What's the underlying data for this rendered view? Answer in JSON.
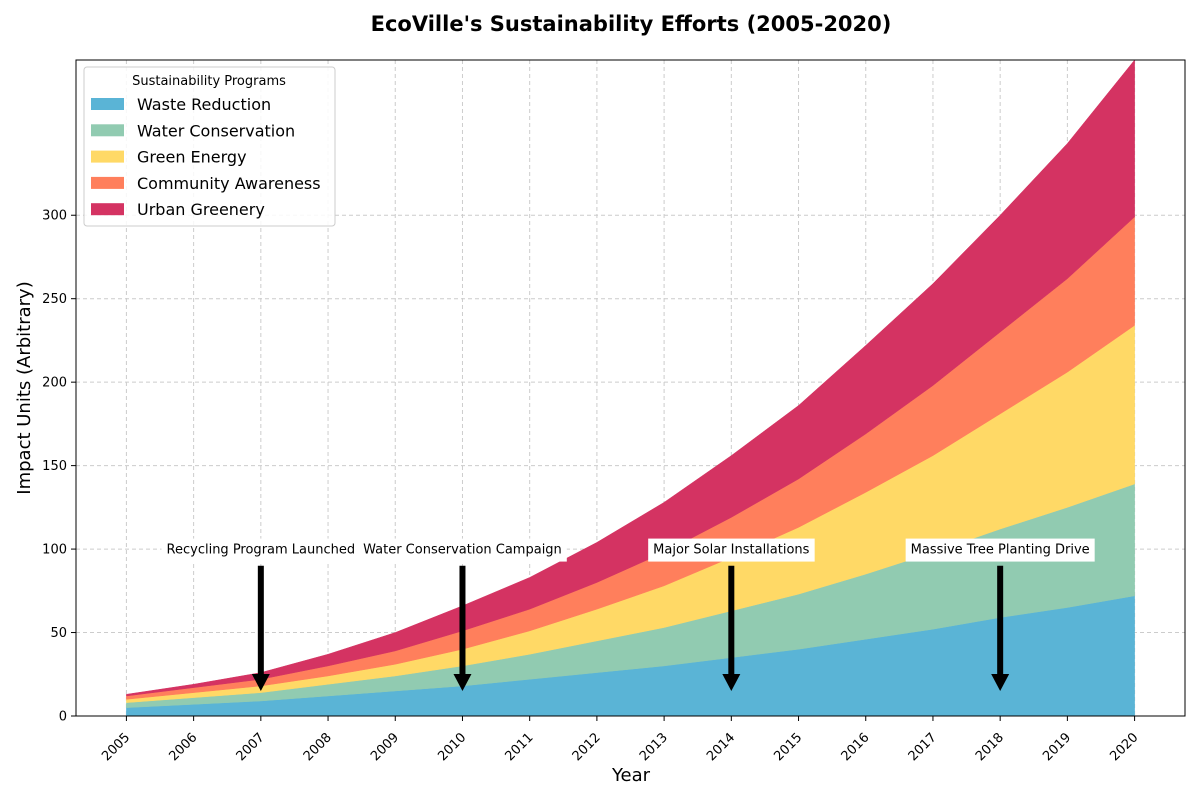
{
  "chart_data": {
    "type": "area",
    "stacked": true,
    "title": "EcoVille's Sustainability Efforts (2005-2020)",
    "xlabel": "Year",
    "ylabel": "Impact Units (Arbitrary)",
    "x": [
      2005,
      2006,
      2007,
      2008,
      2009,
      2010,
      2011,
      2012,
      2013,
      2014,
      2015,
      2016,
      2017,
      2018,
      2019,
      2020
    ],
    "ylim": [
      0,
      393
    ],
    "yticks": [
      0,
      50,
      100,
      150,
      200,
      250,
      300
    ],
    "grid": true,
    "legend": {
      "title": "Sustainability Programs",
      "placement": "top-left"
    },
    "series": [
      {
        "name": "Waste Reduction",
        "color": "#5ab4d6",
        "values": [
          5,
          7,
          9,
          12,
          15,
          18,
          22,
          26,
          30,
          35,
          40,
          46,
          52,
          59,
          65,
          72
        ]
      },
      {
        "name": "Water Conservation",
        "color": "#91cbb1",
        "values": [
          3,
          4,
          5,
          7,
          9,
          12,
          15,
          19,
          23,
          28,
          33,
          39,
          46,
          53,
          60,
          67
        ]
      },
      {
        "name": "Green Energy",
        "color": "#ffd966",
        "values": [
          2,
          3,
          4,
          5,
          7,
          10,
          14,
          19,
          25,
          32,
          40,
          49,
          58,
          69,
          81,
          95
        ]
      },
      {
        "name": "Community Awareness",
        "color": "#ff7f5c",
        "values": [
          2,
          3,
          4,
          6,
          8,
          11,
          13,
          16,
          20,
          24,
          29,
          35,
          42,
          49,
          56,
          65
        ]
      },
      {
        "name": "Urban Greenery",
        "color": "#d43362",
        "values": [
          1,
          2,
          4,
          7,
          11,
          15,
          19,
          24,
          30,
          37,
          44,
          53,
          61,
          70,
          81,
          94
        ]
      }
    ],
    "annotations": [
      {
        "text": "Recycling Program Launched",
        "x": 2007,
        "text_y": 100,
        "arrow_from_y": 90,
        "arrow_to_y": 15
      },
      {
        "text": "Water Conservation Campaign",
        "x": 2010,
        "text_y": 100,
        "arrow_from_y": 90,
        "arrow_to_y": 15
      },
      {
        "text": "Major Solar Installations",
        "x": 2014,
        "text_y": 100,
        "arrow_from_y": 90,
        "arrow_to_y": 15
      },
      {
        "text": "Massive Tree Planting Drive",
        "x": 2018,
        "text_y": 100,
        "arrow_from_y": 90,
        "arrow_to_y": 15
      }
    ]
  }
}
